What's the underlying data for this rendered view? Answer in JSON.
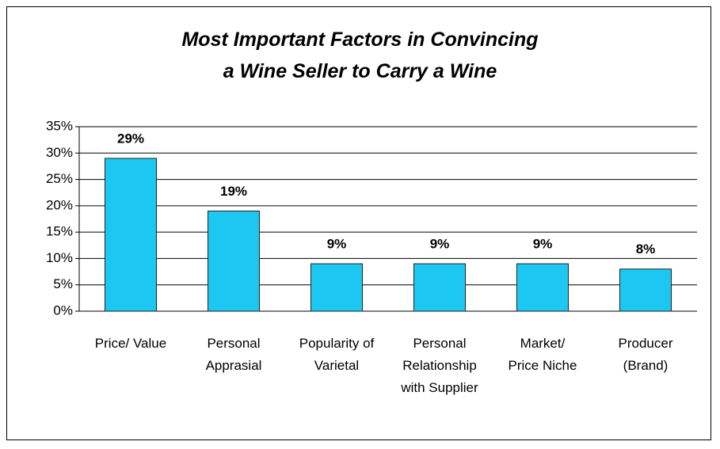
{
  "chart_data": {
    "type": "bar",
    "title": "Most Important Factors in Convincing\na Wine Seller to Carry a Wine",
    "categories": [
      "Price/ Value",
      "Personal\nApprasial",
      "Popularity of\nVarietal",
      "Personal\nRelationship\nwith Supplier",
      "Market/\nPrice Niche",
      "Producer\n(Brand)"
    ],
    "values": [
      29,
      19,
      9,
      9,
      9,
      8
    ],
    "value_labels": [
      "29%",
      "19%",
      "9%",
      "9%",
      "9%",
      "8%"
    ],
    "color": "#1cc8f2",
    "ylim": [
      0,
      35
    ],
    "yticks": [
      {
        "value": 0,
        "label": "0%"
      },
      {
        "value": 5,
        "label": "5%"
      },
      {
        "value": 10,
        "label": "10%"
      },
      {
        "value": 15,
        "label": "15%"
      },
      {
        "value": 20,
        "label": "20%"
      },
      {
        "value": 25,
        "label": "25%"
      },
      {
        "value": 30,
        "label": "30%"
      },
      {
        "value": 35,
        "label": "35%"
      }
    ],
    "grid": true
  }
}
